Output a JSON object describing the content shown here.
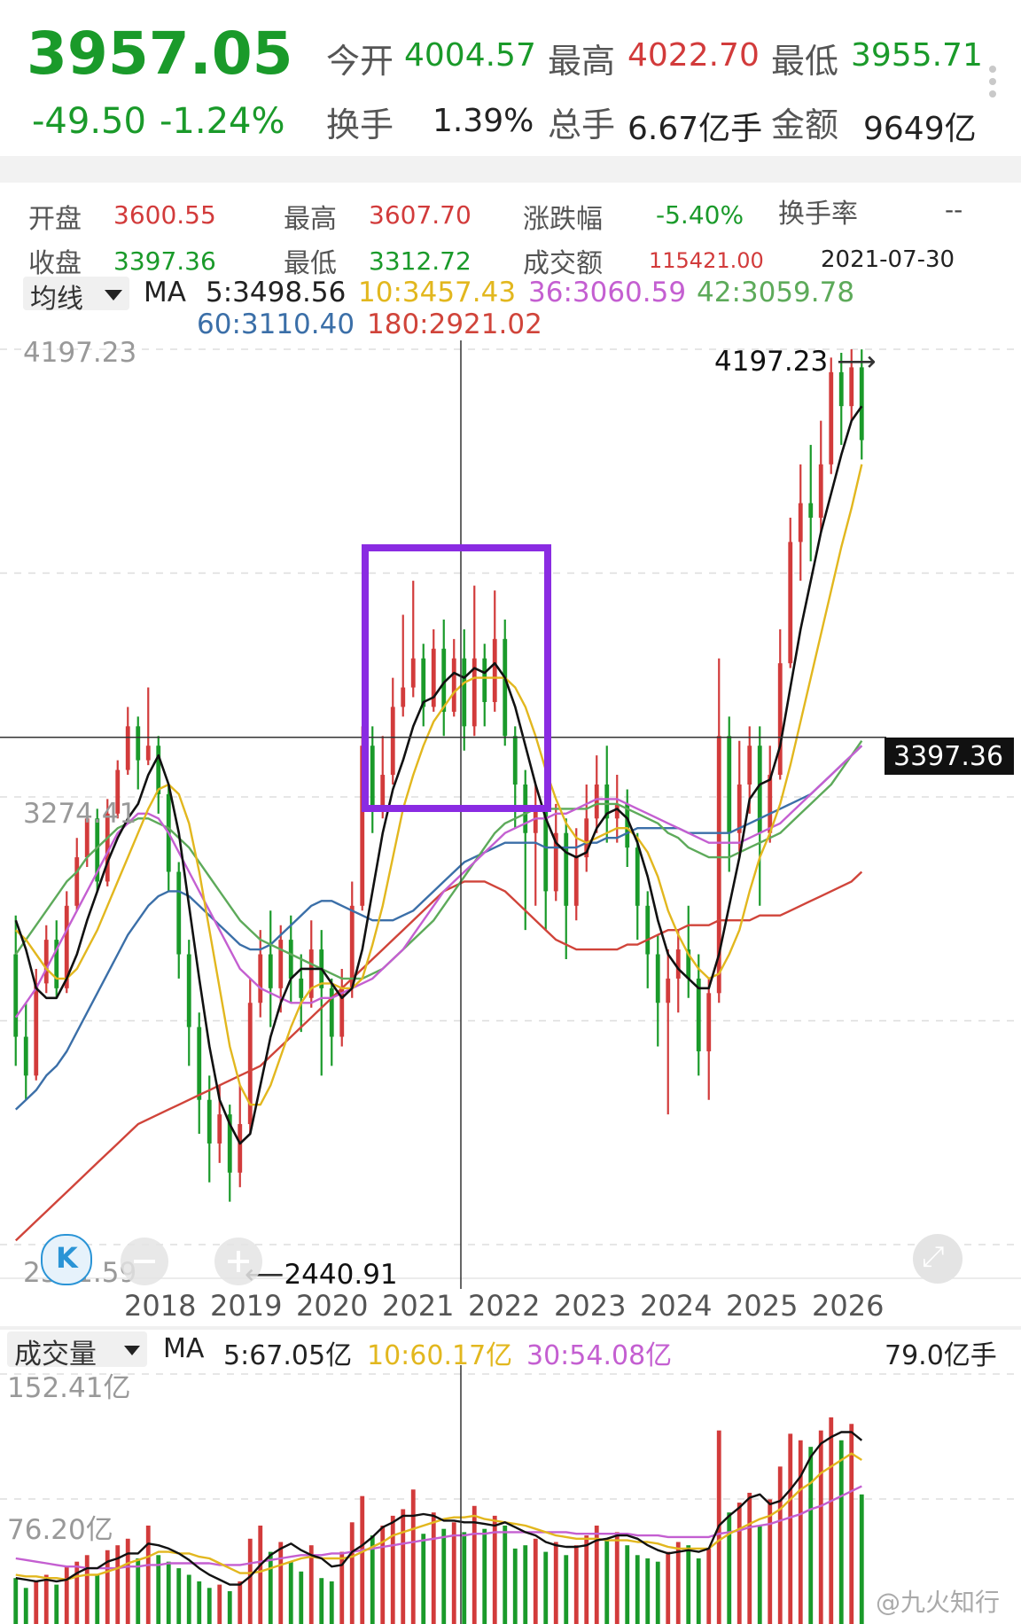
{
  "quote": {
    "price": "3957.05",
    "change": "-49.50",
    "change_pct": "-1.24%",
    "open_label": "今开",
    "open": "4004.57",
    "high_label": "最高",
    "high": "4022.70",
    "low_label": "最低",
    "low": "3955.71",
    "turnover_label": "换手",
    "turnover": "1.39%",
    "volume_label": "总手",
    "volume": "6.67亿手",
    "amount_label": "金额",
    "amount": "9649亿"
  },
  "bar_info": {
    "open_label": "开盘",
    "open": "3600.55",
    "high_label": "最高",
    "high": "3607.70",
    "change_label": "涨跌幅",
    "change": "-5.40%",
    "turnover_label": "换手率",
    "turnover": "--",
    "close_label": "收盘",
    "close": "3397.36",
    "low_label": "最低",
    "low": "3312.72",
    "amount_label": "成交额",
    "amount": "115421.00",
    "date": "2021-07-30"
  },
  "ma_legend": {
    "selector": "均线",
    "prefix": "MA",
    "ma5": "5:3498.56",
    "ma10": "10:3457.43",
    "ma36": "36:3060.59",
    "ma42": "42:3059.78",
    "ma60": "60:3110.40",
    "ma180": "180:2921.02"
  },
  "price_axis": {
    "top": "4197.23",
    "mid": "3274.41",
    "bottom": "2351.59",
    "max_marker": "4197.23",
    "min_marker": "2440.91",
    "crosshair_value": "3397.36"
  },
  "volume_legend": {
    "selector": "成交量",
    "prefix": "MA",
    "ma5": "5:67.05亿",
    "ma10": "10:60.17亿",
    "ma30": "30:54.08亿",
    "current": "79.0亿手"
  },
  "volume_axis": {
    "top": "152.41亿",
    "mid": "76.20亿"
  },
  "watermark": "@九火知行",
  "colors": {
    "up": "#d23b3b",
    "down": "#1a9a2a",
    "ma5": "#111111",
    "ma10": "#e2b71e",
    "ma36": "#c45fd1",
    "ma42": "#5daa5a",
    "ma60": "#3b6fa8",
    "ma180": "#d0443a",
    "highlight_box": "#8a2be2"
  },
  "chart_data": {
    "type": "candlestick",
    "x_labels": [
      "2018",
      "2019",
      "2020",
      "2021",
      "2022",
      "2023",
      "2024",
      "2025",
      "2026"
    ],
    "ylim": [
      2351.59,
      4197.23
    ],
    "volume_ylim": [
      0,
      152.41
    ],
    "candles": [
      {
        "o": 2950,
        "c": 2780,
        "h": 3030,
        "l": 2720
      },
      {
        "o": 2780,
        "c": 2700,
        "h": 2850,
        "l": 2650
      },
      {
        "o": 2700,
        "c": 2890,
        "h": 2920,
        "l": 2690
      },
      {
        "o": 2890,
        "c": 2980,
        "h": 3010,
        "l": 2870
      },
      {
        "o": 2980,
        "c": 2880,
        "h": 3020,
        "l": 2860
      },
      {
        "o": 2880,
        "c": 3050,
        "h": 3080,
        "l": 2870
      },
      {
        "o": 3050,
        "c": 3150,
        "h": 3190,
        "l": 3040
      },
      {
        "o": 3150,
        "c": 3230,
        "h": 3260,
        "l": 3130
      },
      {
        "o": 3230,
        "c": 3100,
        "h": 3250,
        "l": 3080
      },
      {
        "o": 3100,
        "c": 3240,
        "h": 3270,
        "l": 3090
      },
      {
        "o": 3240,
        "c": 3330,
        "h": 3350,
        "l": 3230
      },
      {
        "o": 3330,
        "c": 3420,
        "h": 3460,
        "l": 3320
      },
      {
        "o": 3420,
        "c": 3350,
        "h": 3440,
        "l": 3290
      },
      {
        "o": 3350,
        "c": 3380,
        "h": 3500,
        "l": 3340
      },
      {
        "o": 3380,
        "c": 3280,
        "h": 3400,
        "l": 3240
      },
      {
        "o": 3280,
        "c": 3120,
        "h": 3300,
        "l": 3080
      },
      {
        "o": 3120,
        "c": 2950,
        "h": 3140,
        "l": 2900
      },
      {
        "o": 2950,
        "c": 2800,
        "h": 2980,
        "l": 2720
      },
      {
        "o": 2800,
        "c": 2650,
        "h": 2830,
        "l": 2580
      },
      {
        "o": 2650,
        "c": 2560,
        "h": 2700,
        "l": 2480
      },
      {
        "o": 2560,
        "c": 2620,
        "h": 2680,
        "l": 2520
      },
      {
        "o": 2620,
        "c": 2500,
        "h": 2640,
        "l": 2440
      },
      {
        "o": 2500,
        "c": 2600,
        "h": 2680,
        "l": 2470
      },
      {
        "o": 2600,
        "c": 2850,
        "h": 2900,
        "l": 2580
      },
      {
        "o": 2850,
        "c": 2950,
        "h": 3000,
        "l": 2820
      },
      {
        "o": 2950,
        "c": 2880,
        "h": 3040,
        "l": 2800
      },
      {
        "o": 2880,
        "c": 2980,
        "h": 3010,
        "l": 2830
      },
      {
        "o": 2980,
        "c": 2900,
        "h": 3030,
        "l": 2850
      },
      {
        "o": 2900,
        "c": 2860,
        "h": 2950,
        "l": 2790
      },
      {
        "o": 2860,
        "c": 2960,
        "h": 3020,
        "l": 2840
      },
      {
        "o": 2960,
        "c": 2880,
        "h": 3000,
        "l": 2700
      },
      {
        "o": 2880,
        "c": 2780,
        "h": 2900,
        "l": 2720
      },
      {
        "o": 2780,
        "c": 2880,
        "h": 2920,
        "l": 2760
      },
      {
        "o": 2880,
        "c": 3050,
        "h": 3100,
        "l": 2860
      },
      {
        "o": 3050,
        "c": 3380,
        "h": 3420,
        "l": 3040
      },
      {
        "o": 3380,
        "c": 3250,
        "h": 3420,
        "l": 3200
      },
      {
        "o": 3250,
        "c": 3320,
        "h": 3400,
        "l": 3230
      },
      {
        "o": 3320,
        "c": 3460,
        "h": 3520,
        "l": 3300
      },
      {
        "o": 3460,
        "c": 3500,
        "h": 3650,
        "l": 3440
      },
      {
        "o": 3500,
        "c": 3560,
        "h": 3720,
        "l": 3480
      },
      {
        "o": 3560,
        "c": 3460,
        "h": 3590,
        "l": 3420
      },
      {
        "o": 3460,
        "c": 3580,
        "h": 3620,
        "l": 3450
      },
      {
        "o": 3580,
        "c": 3450,
        "h": 3640,
        "l": 3400
      },
      {
        "o": 3450,
        "c": 3560,
        "h": 3600,
        "l": 3440
      },
      {
        "o": 3560,
        "c": 3420,
        "h": 3620,
        "l": 3370
      },
      {
        "o": 3420,
        "c": 3560,
        "h": 3710,
        "l": 3400
      },
      {
        "o": 3560,
        "c": 3470,
        "h": 3590,
        "l": 3420
      },
      {
        "o": 3470,
        "c": 3600,
        "h": 3700,
        "l": 3450
      },
      {
        "o": 3600,
        "c": 3400,
        "h": 3640,
        "l": 3380
      },
      {
        "o": 3400,
        "c": 3300,
        "h": 3420,
        "l": 3210
      },
      {
        "o": 3300,
        "c": 3200,
        "h": 3330,
        "l": 3000
      },
      {
        "o": 3200,
        "c": 3250,
        "h": 3300,
        "l": 3050
      },
      {
        "o": 3250,
        "c": 3080,
        "h": 3280,
        "l": 3000
      },
      {
        "o": 3080,
        "c": 3200,
        "h": 3260,
        "l": 3060
      },
      {
        "o": 3200,
        "c": 3050,
        "h": 3230,
        "l": 2940
      },
      {
        "o": 3050,
        "c": 3150,
        "h": 3210,
        "l": 3020
      },
      {
        "o": 3150,
        "c": 3230,
        "h": 3300,
        "l": 3120
      },
      {
        "o": 3230,
        "c": 3300,
        "h": 3360,
        "l": 3200
      },
      {
        "o": 3300,
        "c": 3230,
        "h": 3380,
        "l": 3180
      },
      {
        "o": 3230,
        "c": 3260,
        "h": 3320,
        "l": 3180
      },
      {
        "o": 3260,
        "c": 3170,
        "h": 3290,
        "l": 3130
      },
      {
        "o": 3170,
        "c": 3050,
        "h": 3200,
        "l": 2980
      },
      {
        "o": 3050,
        "c": 2950,
        "h": 3080,
        "l": 2880
      },
      {
        "o": 2950,
        "c": 2850,
        "h": 2990,
        "l": 2760
      },
      {
        "o": 2850,
        "c": 2900,
        "h": 2960,
        "l": 2620
      },
      {
        "o": 2900,
        "c": 2960,
        "h": 3000,
        "l": 2830
      },
      {
        "o": 2960,
        "c": 2900,
        "h": 3050,
        "l": 2860
      },
      {
        "o": 2900,
        "c": 2750,
        "h": 2950,
        "l": 2700
      },
      {
        "o": 2750,
        "c": 2870,
        "h": 2900,
        "l": 2650
      },
      {
        "o": 2870,
        "c": 3400,
        "h": 3560,
        "l": 2850
      },
      {
        "o": 3400,
        "c": 3200,
        "h": 3440,
        "l": 3120
      },
      {
        "o": 3200,
        "c": 3300,
        "h": 3390,
        "l": 3150
      },
      {
        "o": 3300,
        "c": 3380,
        "h": 3420,
        "l": 3240
      },
      {
        "o": 3380,
        "c": 3200,
        "h": 3420,
        "l": 3050
      },
      {
        "o": 3200,
        "c": 3320,
        "h": 3380,
        "l": 3180
      },
      {
        "o": 3320,
        "c": 3550,
        "h": 3620,
        "l": 3310
      },
      {
        "o": 3550,
        "c": 3800,
        "h": 3850,
        "l": 3540
      },
      {
        "o": 3800,
        "c": 3880,
        "h": 3960,
        "l": 3720
      },
      {
        "o": 3880,
        "c": 3850,
        "h": 4000,
        "l": 3760
      },
      {
        "o": 3850,
        "c": 3960,
        "h": 4050,
        "l": 3820
      },
      {
        "o": 3960,
        "c": 4150,
        "h": 4180,
        "l": 3940
      },
      {
        "o": 4150,
        "c": 4080,
        "h": 4190,
        "l": 4000
      },
      {
        "o": 4080,
        "c": 4160,
        "h": 4197.23,
        "l": 4050
      },
      {
        "o": 4160,
        "c": 4010,
        "h": 4197,
        "l": 3970
      }
    ],
    "volume": [
      28,
      22,
      26,
      30,
      24,
      35,
      38,
      42,
      30,
      45,
      48,
      52,
      40,
      60,
      42,
      38,
      34,
      30,
      26,
      22,
      24,
      20,
      26,
      52,
      60,
      44,
      50,
      38,
      32,
      48,
      28,
      26,
      44,
      62,
      78,
      54,
      60,
      66,
      70,
      82,
      55,
      68,
      58,
      62,
      56,
      72,
      58,
      66,
      60,
      46,
      48,
      52,
      44,
      50,
      42,
      48,
      54,
      60,
      52,
      56,
      48,
      42,
      40,
      38,
      44,
      50,
      48,
      40,
      46,
      118,
      68,
      74,
      80,
      60,
      76,
      96,
      116,
      112,
      108,
      118,
      126,
      112,
      122,
      79
    ],
    "ma5": [
      3020,
      2960,
      2880,
      2860,
      2860,
      2900,
      2950,
      3020,
      3080,
      3140,
      3190,
      3230,
      3260,
      3320,
      3360,
      3300,
      3200,
      3050,
      2900,
      2760,
      2650,
      2600,
      2560,
      2580,
      2680,
      2780,
      2850,
      2900,
      2920,
      2920,
      2920,
      2890,
      2860,
      2880,
      2960,
      3080,
      3200,
      3290,
      3350,
      3420,
      3470,
      3480,
      3510,
      3530,
      3520,
      3540,
      3530,
      3550,
      3520,
      3460,
      3380,
      3300,
      3230,
      3180,
      3160,
      3150,
      3160,
      3210,
      3240,
      3250,
      3230,
      3180,
      3110,
      3020,
      2950,
      2920,
      2900,
      2880,
      2880,
      2950,
      3050,
      3150,
      3270,
      3300,
      3310,
      3380,
      3500,
      3620,
      3720,
      3820,
      3900,
      3980,
      4050,
      4080
    ],
    "ma10": [
      3000,
      2980,
      2950,
      2920,
      2900,
      2900,
      2920,
      2960,
      3000,
      3050,
      3100,
      3150,
      3200,
      3250,
      3290,
      3300,
      3280,
      3220,
      3120,
      3000,
      2880,
      2760,
      2680,
      2640,
      2640,
      2680,
      2740,
      2800,
      2850,
      2880,
      2890,
      2890,
      2880,
      2880,
      2900,
      2970,
      3050,
      3150,
      3250,
      3320,
      3380,
      3430,
      3460,
      3490,
      3510,
      3520,
      3520,
      3520,
      3520,
      3500,
      3460,
      3400,
      3330,
      3270,
      3220,
      3190,
      3180,
      3190,
      3200,
      3210,
      3210,
      3190,
      3160,
      3110,
      3040,
      2990,
      2950,
      2920,
      2900,
      2910,
      2950,
      3000,
      3080,
      3150,
      3200,
      3260,
      3340,
      3430,
      3520,
      3610,
      3700,
      3790,
      3870,
      3960
    ],
    "ma36": [
      2820,
      2850,
      2880,
      2920,
      2960,
      3000,
      3040,
      3080,
      3120,
      3160,
      3200,
      3220,
      3240,
      3240,
      3230,
      3200,
      3160,
      3120,
      3080,
      3040,
      3000,
      2960,
      2920,
      2900,
      2880,
      2870,
      2860,
      2850,
      2850,
      2850,
      2860,
      2860,
      2870,
      2880,
      2890,
      2900,
      2920,
      2940,
      2960,
      2990,
      3020,
      3050,
      3080,
      3100,
      3120,
      3140,
      3160,
      3180,
      3200,
      3210,
      3220,
      3230,
      3230,
      3240,
      3240,
      3250,
      3260,
      3270,
      3270,
      3270,
      3260,
      3250,
      3240,
      3230,
      3220,
      3210,
      3200,
      3190,
      3180,
      3180,
      3180,
      3180,
      3190,
      3200,
      3210,
      3220,
      3240,
      3260,
      3280,
      3300,
      3320,
      3340,
      3360,
      3380
    ],
    "ma42": [
      2950,
      2980,
      3010,
      3040,
      3070,
      3100,
      3120,
      3150,
      3170,
      3190,
      3210,
      3220,
      3230,
      3230,
      3220,
      3210,
      3190,
      3170,
      3140,
      3110,
      3080,
      3050,
      3020,
      3000,
      2980,
      2970,
      2960,
      2950,
      2940,
      2930,
      2920,
      2910,
      2900,
      2900,
      2900,
      2910,
      2920,
      2940,
      2960,
      2980,
      3000,
      3020,
      3050,
      3080,
      3110,
      3140,
      3170,
      3200,
      3220,
      3230,
      3240,
      3250,
      3250,
      3250,
      3250,
      3250,
      3250,
      3260,
      3260,
      3260,
      3250,
      3240,
      3230,
      3220,
      3200,
      3190,
      3170,
      3160,
      3150,
      3150,
      3150,
      3160,
      3170,
      3180,
      3190,
      3200,
      3220,
      3240,
      3260,
      3280,
      3300,
      3330,
      3360,
      3390
    ],
    "ma60": [
      2630,
      2650,
      2670,
      2700,
      2720,
      2750,
      2790,
      2830,
      2870,
      2910,
      2950,
      2990,
      3020,
      3050,
      3070,
      3080,
      3080,
      3070,
      3050,
      3030,
      3010,
      2990,
      2970,
      2960,
      2960,
      2970,
      2990,
      3010,
      3030,
      3050,
      3060,
      3060,
      3050,
      3040,
      3030,
      3020,
      3020,
      3020,
      3030,
      3040,
      3060,
      3080,
      3100,
      3120,
      3140,
      3150,
      3160,
      3170,
      3180,
      3180,
      3180,
      3180,
      3170,
      3170,
      3170,
      3170,
      3180,
      3180,
      3190,
      3190,
      3200,
      3210,
      3210,
      3210,
      3210,
      3210,
      3200,
      3200,
      3200,
      3200,
      3200,
      3210,
      3220,
      3230,
      3240,
      3250,
      3260,
      3270,
      3280,
      3300,
      3320,
      3340,
      3360,
      3380
    ],
    "ma180": [
      2360,
      2380,
      2400,
      2420,
      2440,
      2460,
      2480,
      2500,
      2520,
      2540,
      2560,
      2580,
      2600,
      2610,
      2620,
      2630,
      2640,
      2650,
      2660,
      2670,
      2680,
      2690,
      2700,
      2710,
      2720,
      2740,
      2760,
      2780,
      2800,
      2820,
      2840,
      2860,
      2880,
      2900,
      2920,
      2940,
      2960,
      2980,
      3000,
      3020,
      3040,
      3060,
      3080,
      3090,
      3100,
      3100,
      3100,
      3090,
      3080,
      3060,
      3040,
      3020,
      3000,
      2980,
      2970,
      2960,
      2960,
      2960,
      2960,
      2960,
      2970,
      2970,
      2980,
      2990,
      3000,
      3000,
      3010,
      3010,
      3010,
      3020,
      3020,
      3020,
      3020,
      3030,
      3030,
      3030,
      3040,
      3050,
      3060,
      3070,
      3080,
      3090,
      3100,
      3120
    ],
    "vol_ma5": [
      28,
      27,
      26,
      27,
      26,
      27,
      31,
      34,
      34,
      38,
      40,
      43,
      43,
      49,
      48,
      46,
      43,
      39,
      34,
      30,
      27,
      24,
      24,
      29,
      36,
      42,
      46,
      49,
      45,
      42,
      40,
      35,
      36,
      44,
      48,
      53,
      59,
      62,
      66,
      66,
      67,
      66,
      63,
      63,
      62,
      62,
      61,
      60,
      62,
      59,
      56,
      54,
      50,
      48,
      47,
      47,
      48,
      51,
      52,
      54,
      54,
      52,
      48,
      45,
      43,
      44,
      45,
      44,
      46,
      60,
      66,
      71,
      77,
      79,
      73,
      75,
      82,
      90,
      102,
      110,
      114,
      117,
      117,
      112
    ],
    "vol_ma10": [
      30,
      29,
      29,
      28,
      28,
      27,
      29,
      30,
      30,
      32,
      34,
      37,
      39,
      41,
      44,
      44,
      43,
      43,
      41,
      40,
      37,
      34,
      31,
      31,
      32,
      34,
      36,
      38,
      40,
      41,
      40,
      40,
      40,
      41,
      44,
      47,
      50,
      54,
      56,
      58,
      60,
      62,
      64,
      65,
      65,
      66,
      64,
      63,
      62,
      61,
      60,
      58,
      56,
      54,
      53,
      52,
      52,
      52,
      51,
      51,
      51,
      50,
      50,
      49,
      47,
      46,
      46,
      46,
      46,
      51,
      55,
      58,
      61,
      64,
      66,
      70,
      76,
      82,
      86,
      92,
      96,
      100,
      104,
      100
    ],
    "vol_ma30": [
      40,
      39,
      38,
      37,
      36,
      35,
      35,
      34,
      34,
      34,
      34,
      35,
      35,
      36,
      36,
      37,
      37,
      37,
      37,
      37,
      36,
      36,
      36,
      37,
      38,
      39,
      40,
      41,
      42,
      42,
      42,
      43,
      43,
      44,
      45,
      46,
      47,
      48,
      49,
      50,
      51,
      52,
      53,
      54,
      54,
      55,
      55,
      56,
      56,
      56,
      56,
      56,
      56,
      56,
      56,
      55,
      55,
      55,
      55,
      55,
      55,
      54,
      54,
      54,
      53,
      53,
      53,
      53,
      53,
      55,
      56,
      57,
      59,
      60,
      61,
      63,
      65,
      67,
      70,
      72,
      75,
      78,
      81,
      84
    ]
  }
}
